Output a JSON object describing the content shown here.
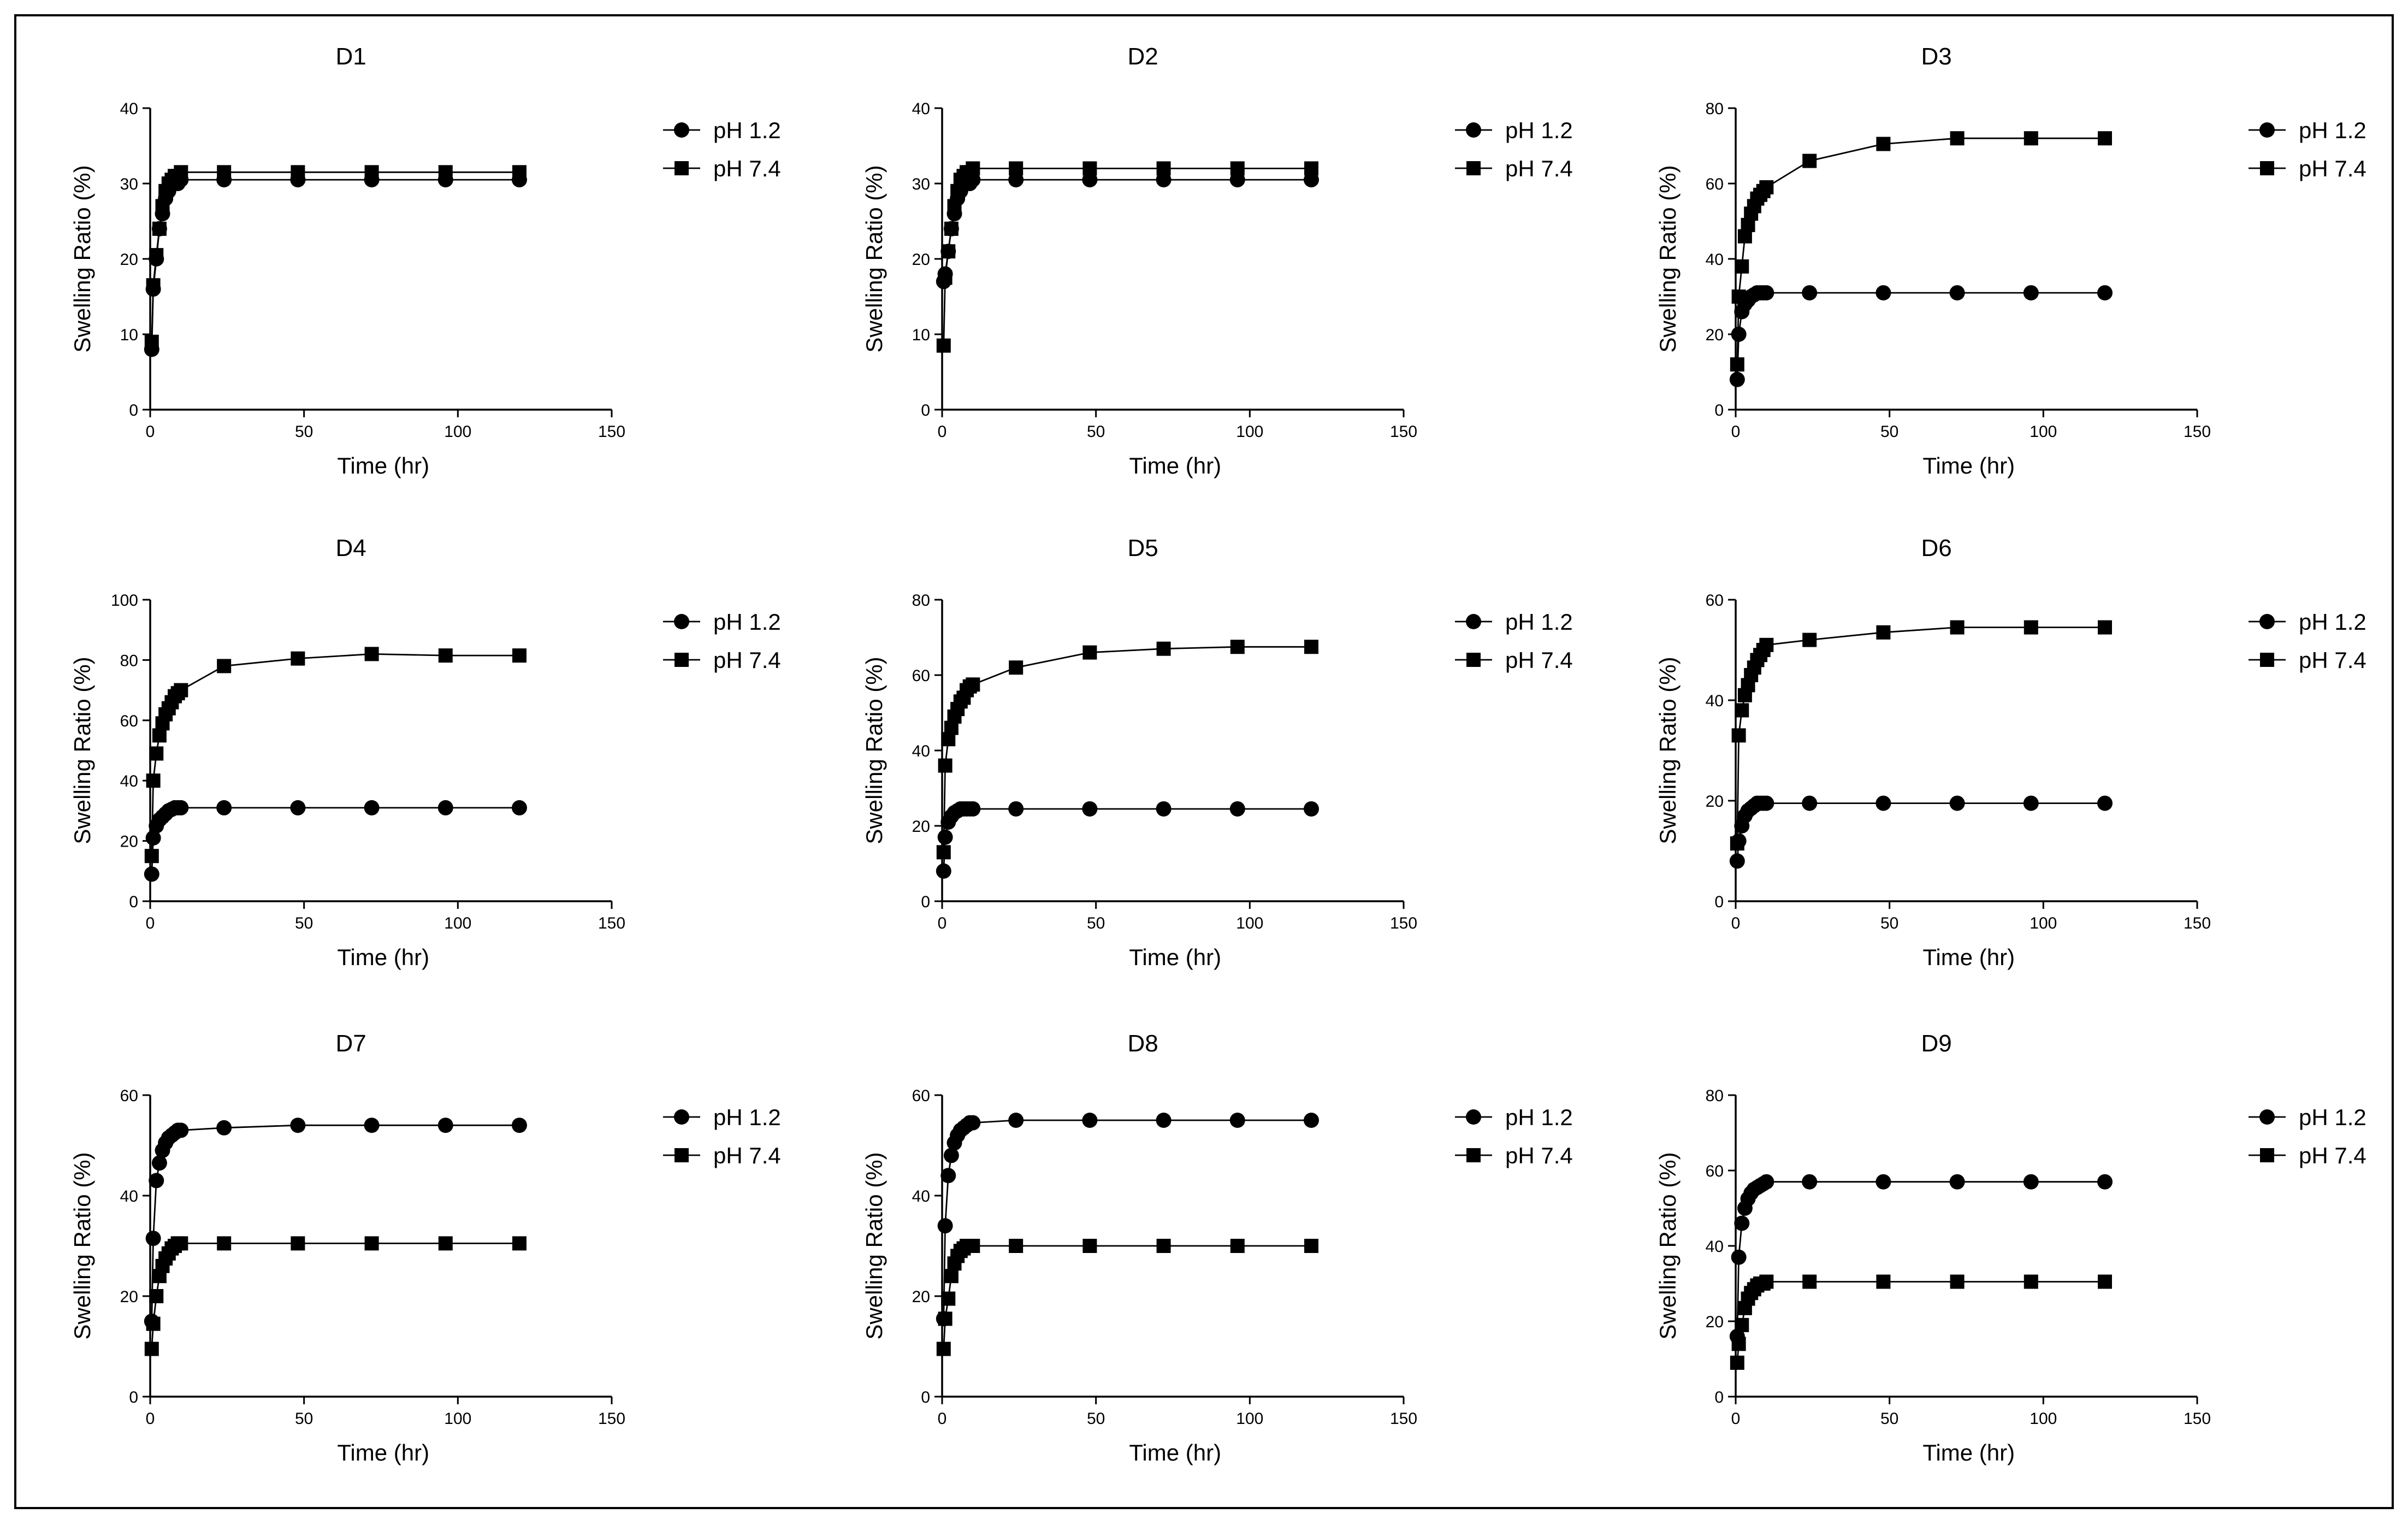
{
  "figure": {
    "border_color": "#000000",
    "background": "#ffffff"
  },
  "chart_data": [
    {
      "type": "line",
      "title": "D1",
      "xlabel": "Time (hr)",
      "ylabel": "Swelling Ratio (%)",
      "xlim": [
        0,
        150
      ],
      "ylim": [
        0,
        40
      ],
      "xticks": [
        0,
        50,
        100,
        150
      ],
      "yticks": [
        0,
        10,
        20,
        30,
        40
      ],
      "x": [
        0.5,
        1,
        2,
        3,
        4,
        5,
        6,
        7,
        8,
        9,
        10,
        24,
        48,
        72,
        96,
        120
      ],
      "series": [
        {
          "name": "pH 1.2",
          "marker": "circle",
          "values": [
            8,
            16,
            20,
            24,
            26,
            28,
            29,
            30,
            30,
            30,
            30.5,
            30.5,
            30.5,
            30.5,
            30.5,
            30.5
          ]
        },
        {
          "name": "pH 7.4",
          "marker": "square",
          "values": [
            9,
            16.5,
            20.5,
            24,
            27,
            29,
            30,
            30.5,
            31,
            31,
            31.5,
            31.5,
            31.5,
            31.5,
            31.5,
            31.5
          ]
        }
      ],
      "legend": [
        "pH 1.2",
        "pH 7.4"
      ]
    },
    {
      "type": "line",
      "title": "D2",
      "xlabel": "Time (hr)",
      "ylabel": "Swelling Ratio (%)",
      "xlim": [
        0,
        150
      ],
      "ylim": [
        0,
        40
      ],
      "xticks": [
        0,
        50,
        100,
        150
      ],
      "yticks": [
        0,
        10,
        20,
        30,
        40
      ],
      "x": [
        0.5,
        1,
        2,
        3,
        4,
        5,
        6,
        7,
        8,
        9,
        10,
        24,
        48,
        72,
        96,
        120
      ],
      "series": [
        {
          "name": "pH 1.2",
          "marker": "circle",
          "values": [
            17,
            18,
            21,
            24,
            26,
            28,
            29,
            30,
            30,
            30,
            30.5,
            30.5,
            30.5,
            30.5,
            30.5,
            30.5
          ]
        },
        {
          "name": "pH 7.4",
          "marker": "square",
          "values": [
            8.5,
            17.5,
            21,
            24,
            27,
            29,
            30.5,
            31,
            31.5,
            31.5,
            32,
            32,
            32,
            32,
            32,
            32
          ]
        }
      ],
      "legend": [
        "pH 1.2",
        "pH 7.4"
      ]
    },
    {
      "type": "line",
      "title": "D3",
      "xlabel": "Time (hr)",
      "ylabel": "Swelling Ratio (%)",
      "xlim": [
        0,
        150
      ],
      "ylim": [
        0,
        80
      ],
      "xticks": [
        0,
        50,
        100,
        150
      ],
      "yticks": [
        0,
        20,
        40,
        60,
        80
      ],
      "x": [
        0.5,
        1,
        2,
        3,
        4,
        5,
        6,
        7,
        8,
        9,
        10,
        24,
        48,
        72,
        96,
        120
      ],
      "series": [
        {
          "name": "pH 1.2",
          "marker": "circle",
          "values": [
            8,
            20,
            26,
            28,
            29,
            30,
            30.5,
            31,
            31,
            31,
            31,
            31,
            31,
            31,
            31,
            31
          ]
        },
        {
          "name": "pH 7.4",
          "marker": "square",
          "values": [
            12,
            30,
            38,
            46,
            49,
            52,
            54,
            56,
            57,
            58,
            59,
            66,
            70.5,
            72,
            72,
            72
          ]
        }
      ],
      "legend": [
        "pH 1.2",
        "pH 7.4"
      ]
    },
    {
      "type": "line",
      "title": "D4",
      "xlabel": "Time (hr)",
      "ylabel": "Swelling Ratio (%)",
      "xlim": [
        0,
        150
      ],
      "ylim": [
        0,
        100
      ],
      "xticks": [
        0,
        50,
        100,
        150
      ],
      "yticks": [
        0,
        20,
        40,
        60,
        80,
        100
      ],
      "x": [
        0.5,
        1,
        2,
        3,
        4,
        5,
        6,
        7,
        8,
        9,
        10,
        24,
        48,
        72,
        96,
        120
      ],
      "series": [
        {
          "name": "pH 1.2",
          "marker": "circle",
          "values": [
            9,
            21,
            25,
            27,
            28,
            29,
            30,
            30.5,
            31,
            31,
            31,
            31,
            31,
            31,
            31,
            31
          ]
        },
        {
          "name": "pH 7.4",
          "marker": "square",
          "values": [
            15,
            40,
            49,
            55,
            59,
            62,
            64,
            66,
            68,
            69,
            70,
            78,
            80.5,
            82,
            81.5,
            81.5
          ]
        }
      ],
      "legend": [
        "pH 1.2",
        "pH 7.4"
      ]
    },
    {
      "type": "line",
      "title": "D5",
      "xlabel": "Time (hr)",
      "ylabel": "Swelling Ratio (%)",
      "xlim": [
        0,
        150
      ],
      "ylim": [
        0,
        80
      ],
      "xticks": [
        0,
        50,
        100,
        150
      ],
      "yticks": [
        0,
        20,
        40,
        60,
        80
      ],
      "x": [
        0.5,
        1,
        2,
        3,
        4,
        5,
        6,
        7,
        8,
        9,
        10,
        24,
        48,
        72,
        96,
        120
      ],
      "series": [
        {
          "name": "pH 1.2",
          "marker": "circle",
          "values": [
            8,
            17,
            21,
            22.5,
            23.5,
            24,
            24.5,
            24.5,
            24.5,
            24.5,
            24.5,
            24.5,
            24.5,
            24.5,
            24.5,
            24.5
          ]
        },
        {
          "name": "pH 7.4",
          "marker": "square",
          "values": [
            13,
            36,
            43,
            46,
            49,
            51,
            53,
            54,
            56,
            57,
            57.5,
            62,
            66,
            67,
            67.5,
            67.5
          ]
        }
      ],
      "legend": [
        "pH 1.2",
        "pH 7.4"
      ]
    },
    {
      "type": "line",
      "title": "D6",
      "xlabel": "Time (hr)",
      "ylabel": "Swelling Ratio (%)",
      "xlim": [
        0,
        150
      ],
      "ylim": [
        0,
        60
      ],
      "xticks": [
        0,
        50,
        100,
        150
      ],
      "yticks": [
        0,
        20,
        40,
        60
      ],
      "x": [
        0.5,
        1,
        2,
        3,
        4,
        5,
        6,
        7,
        8,
        9,
        10,
        24,
        48,
        72,
        96,
        120
      ],
      "series": [
        {
          "name": "pH 1.2",
          "marker": "circle",
          "values": [
            8,
            12,
            15,
            17,
            18,
            18.5,
            19,
            19.5,
            19.5,
            19.5,
            19.5,
            19.5,
            19.5,
            19.5,
            19.5,
            19.5
          ]
        },
        {
          "name": "pH 7.4",
          "marker": "square",
          "values": [
            11.5,
            33,
            38,
            41,
            43,
            45,
            46.5,
            48,
            49,
            50,
            51,
            52,
            53.5,
            54.5,
            54.5,
            54.5
          ]
        }
      ],
      "legend": [
        "pH 1.2",
        "pH 7.4"
      ]
    },
    {
      "type": "line",
      "title": "D7",
      "xlabel": "Time (hr)",
      "ylabel": "Swelling Ratio (%)",
      "xlim": [
        0,
        150
      ],
      "ylim": [
        0,
        60
      ],
      "xticks": [
        0,
        50,
        100,
        150
      ],
      "yticks": [
        0,
        20,
        40,
        60
      ],
      "x": [
        0.5,
        1,
        2,
        3,
        4,
        5,
        6,
        7,
        8,
        9,
        10,
        24,
        48,
        72,
        96,
        120
      ],
      "series": [
        {
          "name": "pH 1.2",
          "marker": "circle",
          "values": [
            15,
            31.5,
            43,
            46.5,
            49,
            50.5,
            51.5,
            52,
            52.5,
            53,
            53,
            53.5,
            54,
            54,
            54,
            54
          ]
        },
        {
          "name": "pH 7.4",
          "marker": "square",
          "values": [
            9.5,
            14.5,
            20,
            24,
            26,
            27.5,
            28.5,
            29.5,
            30,
            30.5,
            30.5,
            30.5,
            30.5,
            30.5,
            30.5,
            30.5
          ]
        }
      ],
      "legend": [
        "pH 1.2",
        "pH 7.4"
      ]
    },
    {
      "type": "line",
      "title": "D8",
      "xlabel": "Time (hr)",
      "ylabel": "Swelling Ratio (%)",
      "xlim": [
        0,
        150
      ],
      "ylim": [
        0,
        60
      ],
      "xticks": [
        0,
        50,
        100,
        150
      ],
      "yticks": [
        0,
        20,
        40,
        60
      ],
      "x": [
        0.5,
        1,
        2,
        3,
        4,
        5,
        6,
        7,
        8,
        9,
        10,
        24,
        48,
        72,
        96,
        120
      ],
      "series": [
        {
          "name": "pH 1.2",
          "marker": "circle",
          "values": [
            15.5,
            34,
            44,
            48,
            50.5,
            52,
            53,
            53.5,
            54,
            54.5,
            54.5,
            55,
            55,
            55,
            55,
            55
          ]
        },
        {
          "name": "pH 7.4",
          "marker": "square",
          "values": [
            9.5,
            15.5,
            19.5,
            24,
            26.5,
            28,
            29,
            29.5,
            30,
            30,
            30,
            30,
            30,
            30,
            30,
            30
          ]
        }
      ],
      "legend": [
        "pH 1.2",
        "pH 7.4"
      ]
    },
    {
      "type": "line",
      "title": "D9",
      "xlabel": "Time (hr)",
      "ylabel": "Swelling Ratio (%)",
      "xlim": [
        0,
        150
      ],
      "ylim": [
        0,
        80
      ],
      "xticks": [
        0,
        50,
        100,
        150
      ],
      "yticks": [
        0,
        20,
        40,
        60,
        80
      ],
      "x": [
        0.5,
        1,
        2,
        3,
        4,
        5,
        6,
        7,
        8,
        9,
        10,
        24,
        48,
        72,
        96,
        120
      ],
      "series": [
        {
          "name": "pH 1.2",
          "marker": "circle",
          "values": [
            16,
            37,
            46,
            50,
            52.5,
            54,
            55,
            55.5,
            56,
            56.5,
            57,
            57,
            57,
            57,
            57,
            57
          ]
        },
        {
          "name": "pH 7.4",
          "marker": "square",
          "values": [
            9,
            14,
            19,
            23.5,
            26,
            27.5,
            28.5,
            29.5,
            30,
            30,
            30.5,
            30.5,
            30.5,
            30.5,
            30.5,
            30.5
          ]
        }
      ],
      "legend": [
        "pH 1.2",
        "pH 7.4"
      ]
    }
  ]
}
